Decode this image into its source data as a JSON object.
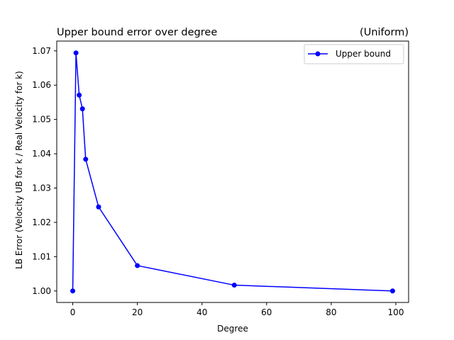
{
  "chart_data": {
    "type": "line",
    "title": "Upper bound error over degree",
    "subtitle": "(Uniform)",
    "xlabel": "Degree",
    "ylabel": "LB Error (Velocity UB for k / Real Velocity for k)",
    "xlim": [
      -4.95,
      103.95
    ],
    "ylim": [
      0.99665,
      1.07285
    ],
    "x_ticks": [
      0,
      20,
      40,
      60,
      80,
      100
    ],
    "y_ticks": [
      1.0,
      1.01,
      1.02,
      1.03,
      1.04,
      1.05,
      1.06,
      1.07
    ],
    "x_tick_labels": [
      "0",
      "20",
      "40",
      "60",
      "80",
      "100"
    ],
    "y_tick_labels": [
      "1.00",
      "1.01",
      "1.02",
      "1.03",
      "1.04",
      "1.05",
      "1.06",
      "1.07"
    ],
    "grid": false,
    "legend_position": "top-right",
    "series": [
      {
        "name": "Upper bound",
        "color": "#0000ff",
        "marker": "circle",
        "x": [
          0,
          1,
          2,
          3,
          4,
          8,
          20,
          50,
          99
        ],
        "y": [
          1.0,
          1.0694,
          1.0571,
          1.0531,
          1.0384,
          1.0245,
          1.0074,
          1.0017,
          1.0
        ]
      }
    ]
  }
}
